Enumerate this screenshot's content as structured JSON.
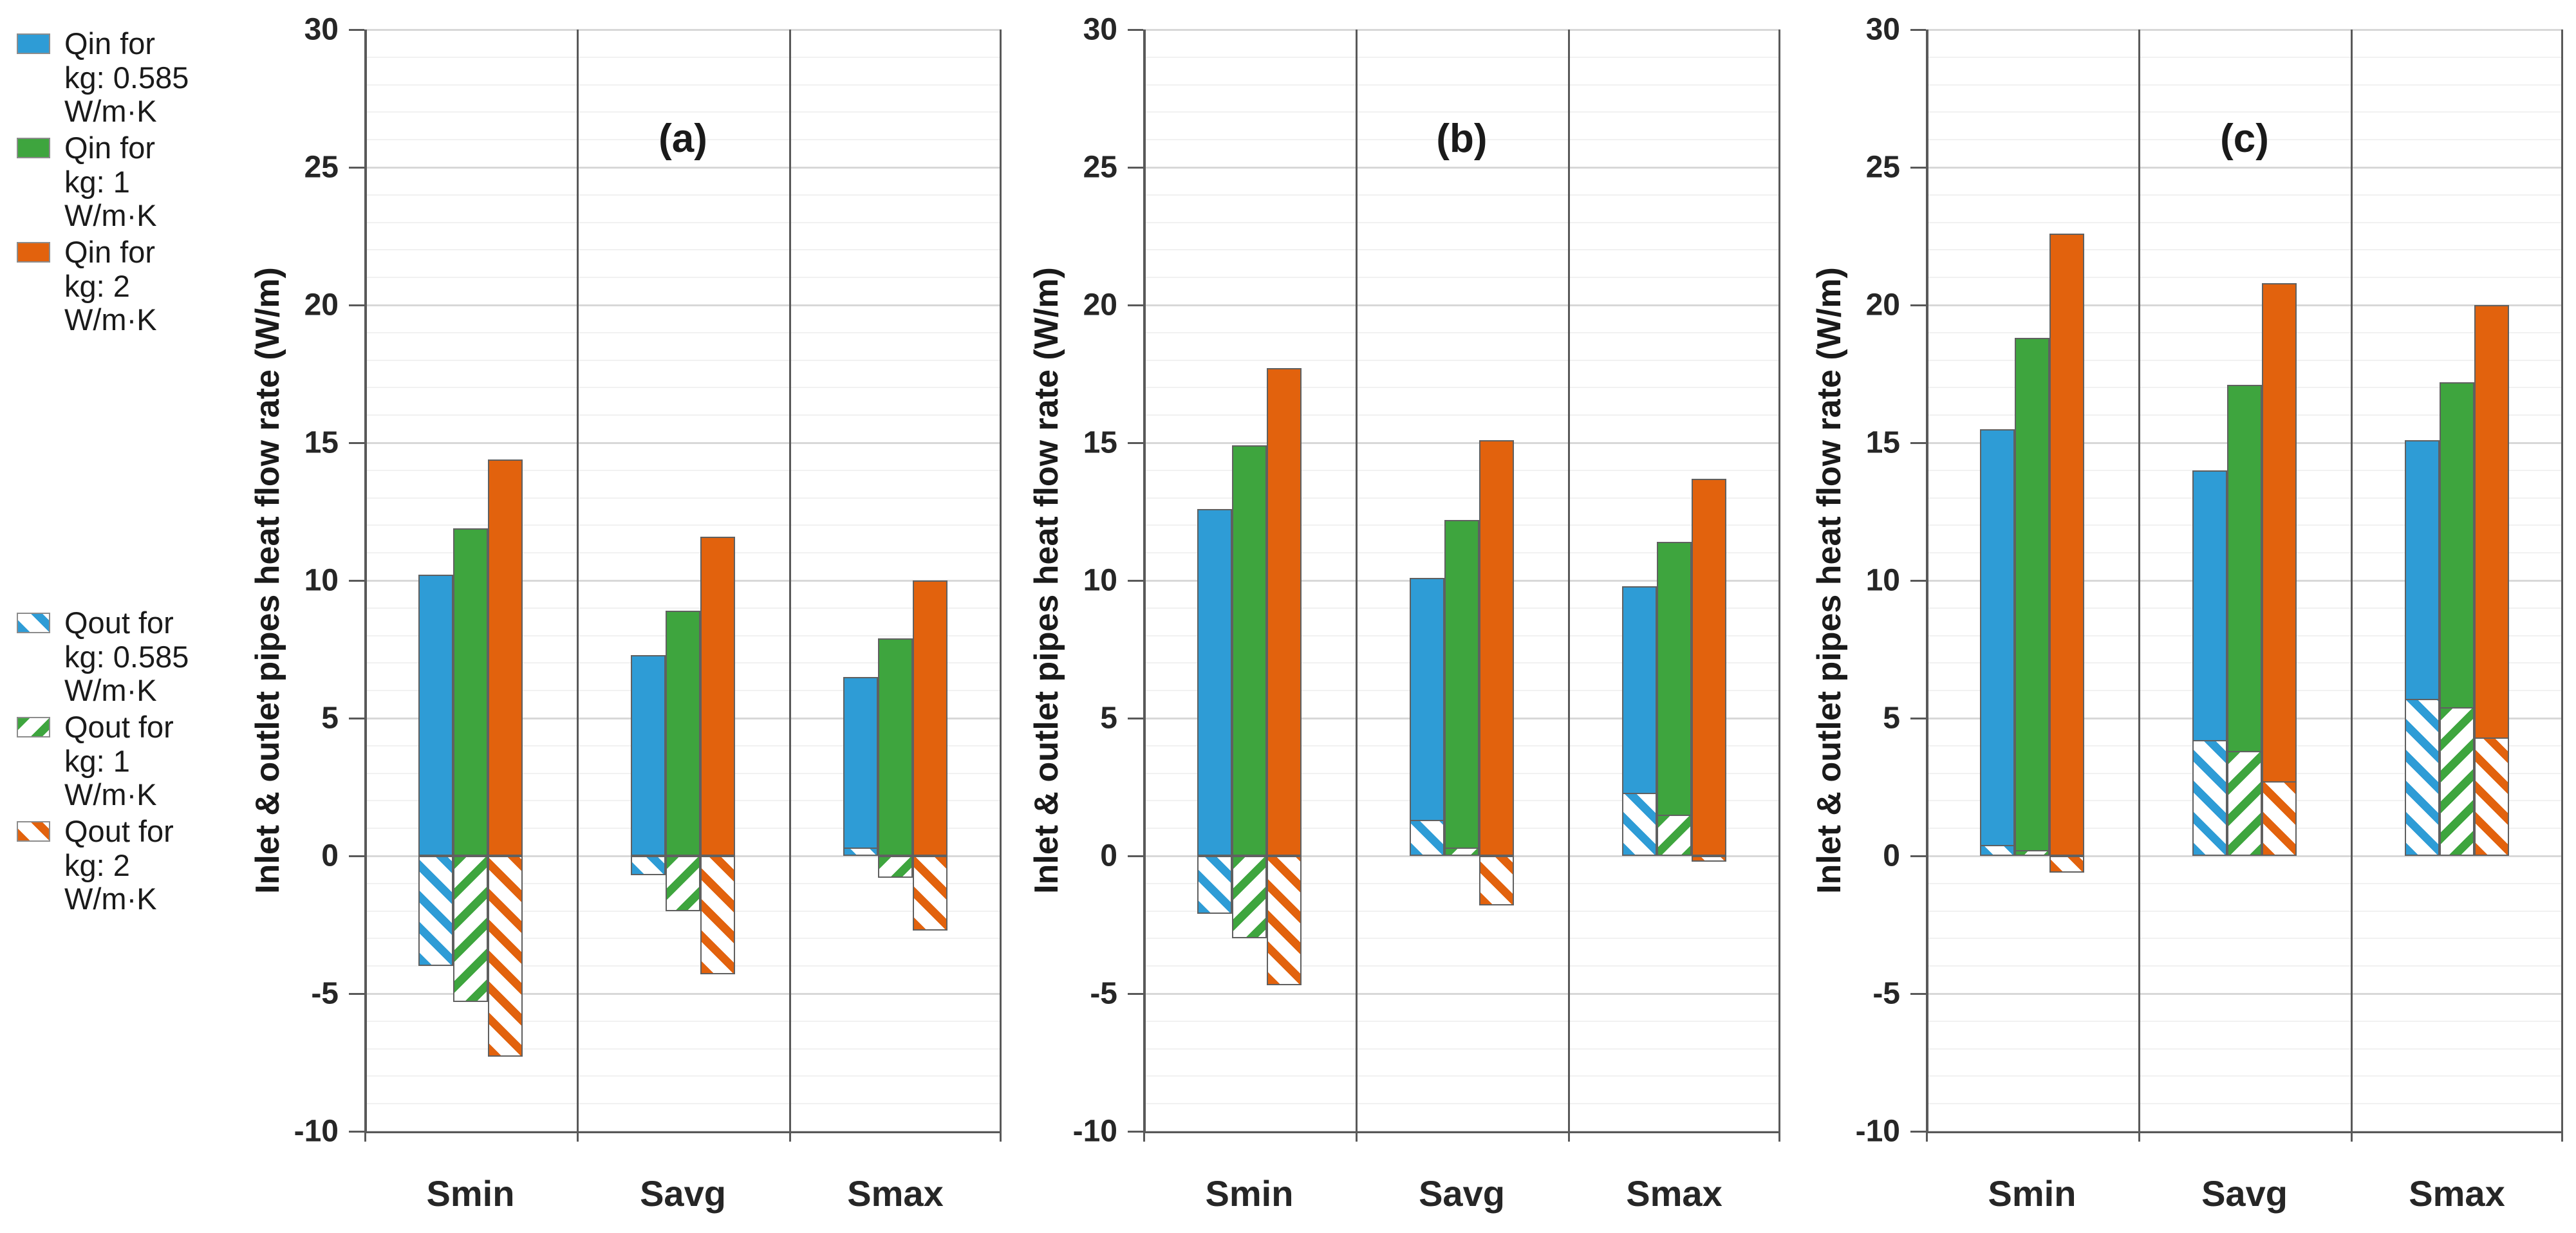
{
  "figure": {
    "y_axis_title": "Inlet & outlet pipes heat flow rate (W/m)",
    "y_ticks": [
      30,
      25,
      20,
      15,
      10,
      5,
      0,
      -5,
      -10
    ],
    "ylim": [
      -10,
      30
    ],
    "categories": [
      "Smin",
      "Savg",
      "Smax"
    ]
  },
  "colors": {
    "blue": "#2E9CD6",
    "green": "#3EA53E",
    "orange": "#E2620D",
    "grid_minor": "#f1f1f1",
    "grid_major": "#d8d8d8",
    "axis": "#595959"
  },
  "legend": {
    "items": [
      {
        "label_lines": "Qin  for\nkg: 0.585\nW/m·K",
        "color": "blue",
        "hatched": false
      },
      {
        "label_lines": "Qin  for\nkg: 1\nW/m·K",
        "color": "green",
        "hatched": false
      },
      {
        "label_lines": "Qin  for\nkg: 2\nW/m·K",
        "color": "orange",
        "hatched": false
      },
      {
        "label_lines": "Qout  for\nkg: 0.585\nW/m·K",
        "color": "blue",
        "hatched": true
      },
      {
        "label_lines": "Qout  for\nkg: 1\nW/m·K",
        "color": "green",
        "hatched": true
      },
      {
        "label_lines": "Qout  for\nkg: 2\nW/m·K",
        "color": "orange",
        "hatched": true
      }
    ]
  },
  "chart_data": [
    {
      "type": "bar",
      "panel_label": "(a)",
      "categories": [
        "Smin",
        "Savg",
        "Smax"
      ],
      "ylim": [
        -10,
        30
      ],
      "ylabel": "Inlet & outlet pipes heat flow rate (W/m)",
      "series": [
        {
          "name": "Qin for kg: 0.585 W/m·K",
          "style": "solid",
          "color": "blue",
          "values": [
            10.2,
            7.3,
            6.5
          ]
        },
        {
          "name": "Qin for kg: 1 W/m·K",
          "style": "solid",
          "color": "green",
          "values": [
            11.9,
            8.9,
            7.9
          ]
        },
        {
          "name": "Qin for kg: 2 W/m·K",
          "style": "solid",
          "color": "orange",
          "values": [
            14.4,
            11.6,
            10.0
          ]
        },
        {
          "name": "Qout for kg: 0.585 W/m·K",
          "style": "hatched",
          "color": "blue",
          "values": [
            -4.0,
            -0.7,
            0.3
          ]
        },
        {
          "name": "Qout for kg: 1 W/m·K",
          "style": "hatched",
          "color": "green",
          "values": [
            -5.3,
            -2.0,
            -0.8
          ]
        },
        {
          "name": "Qout for kg: 2 W/m·K",
          "style": "hatched",
          "color": "orange",
          "values": [
            -7.3,
            -4.3,
            -2.7
          ]
        }
      ]
    },
    {
      "type": "bar",
      "panel_label": "(b)",
      "categories": [
        "Smin",
        "Savg",
        "Smax"
      ],
      "ylim": [
        -10,
        30
      ],
      "ylabel": "Inlet & outlet pipes heat flow rate (W/m)",
      "series": [
        {
          "name": "Qin for kg: 0.585 W/m·K",
          "style": "solid",
          "color": "blue",
          "values": [
            12.6,
            10.1,
            9.8
          ]
        },
        {
          "name": "Qin for kg: 1 W/m·K",
          "style": "solid",
          "color": "green",
          "values": [
            14.9,
            12.2,
            11.4
          ]
        },
        {
          "name": "Qin for kg: 2 W/m·K",
          "style": "solid",
          "color": "orange",
          "values": [
            17.7,
            15.1,
            13.7
          ]
        },
        {
          "name": "Qout for kg: 0.585 W/m·K",
          "style": "hatched",
          "color": "blue",
          "values": [
            -2.1,
            1.3,
            2.3
          ]
        },
        {
          "name": "Qout for kg: 1 W/m·K",
          "style": "hatched",
          "color": "green",
          "values": [
            -3.0,
            0.3,
            1.5
          ]
        },
        {
          "name": "Qout for kg: 2 W/m·K",
          "style": "hatched",
          "color": "orange",
          "values": [
            -4.7,
            -1.8,
            -0.2
          ]
        }
      ]
    },
    {
      "type": "bar",
      "panel_label": "(c)",
      "categories": [
        "Smin",
        "Savg",
        "Smax"
      ],
      "ylim": [
        -10,
        30
      ],
      "ylabel": "Inlet & outlet pipes heat flow rate (W/m)",
      "series": [
        {
          "name": "Qin for kg: 0.585 W/m·K",
          "style": "solid",
          "color": "blue",
          "values": [
            15.5,
            14.0,
            15.1
          ]
        },
        {
          "name": "Qin for kg: 1 W/m·K",
          "style": "solid",
          "color": "green",
          "values": [
            18.8,
            17.1,
            17.2
          ]
        },
        {
          "name": "Qin for kg: 2 W/m·K",
          "style": "solid",
          "color": "orange",
          "values": [
            22.6,
            20.8,
            20.0
          ]
        },
        {
          "name": "Qout for kg: 0.585 W/m·K",
          "style": "hatched",
          "color": "blue",
          "values": [
            0.4,
            4.2,
            5.7
          ]
        },
        {
          "name": "Qout for kg: 1 W/m·K",
          "style": "hatched",
          "color": "green",
          "values": [
            0.2,
            3.8,
            5.4
          ]
        },
        {
          "name": "Qout for kg: 2 W/m·K",
          "style": "hatched",
          "color": "orange",
          "values": [
            -0.6,
            2.7,
            4.3
          ]
        }
      ]
    }
  ]
}
